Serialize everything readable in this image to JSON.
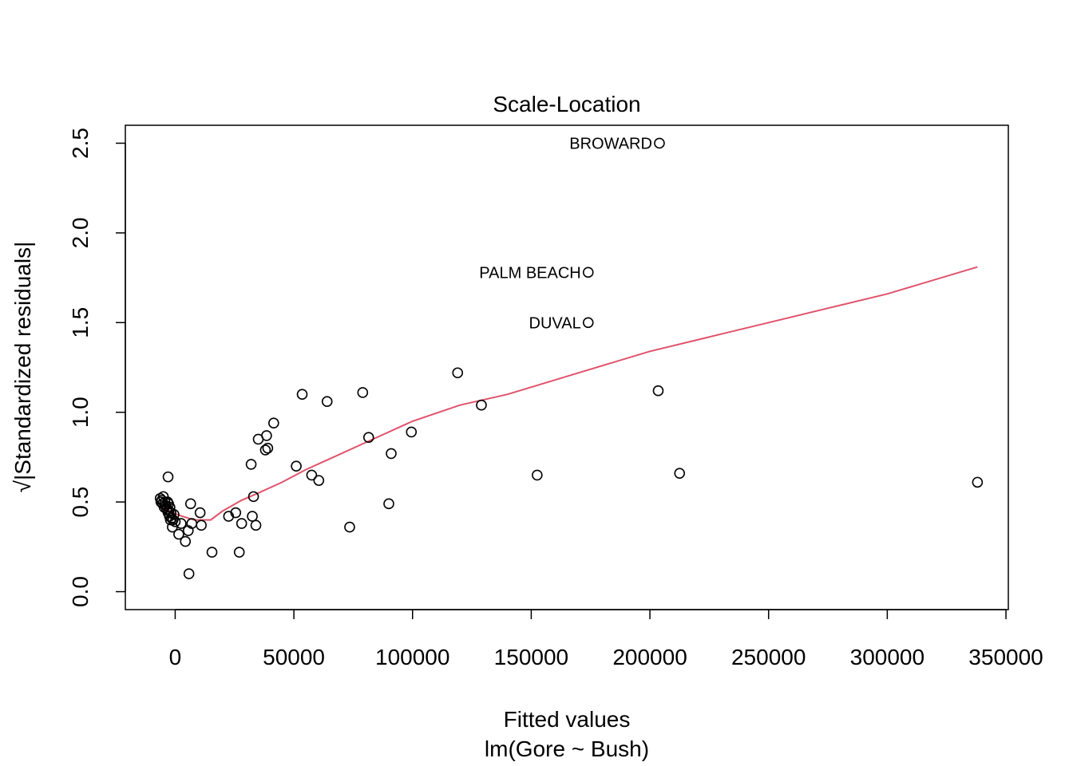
{
  "chart_data": {
    "type": "scatter",
    "title": "Scale-Location",
    "xlabel": "Fitted values",
    "xlabel_sub": "lm(Gore ~ Bush)",
    "ylabel": "√|Standardized residuals|",
    "xlim": [
      -21000,
      351000
    ],
    "ylim": [
      -0.1,
      2.6
    ],
    "xticks": [
      0,
      50000,
      100000,
      150000,
      200000,
      250000,
      300000,
      350000
    ],
    "xtick_labels": [
      "0",
      "50000",
      "100000",
      "150000",
      "200000",
      "250000",
      "300000",
      "350000"
    ],
    "yticks": [
      0.0,
      0.5,
      1.0,
      1.5,
      2.0,
      2.5
    ],
    "ytick_labels": [
      "0.0",
      "0.5",
      "1.0",
      "1.5",
      "2.0",
      "2.5"
    ],
    "smooth_color": "#DF536B",
    "points": [
      [
        -6300,
        0.52
      ],
      [
        -6000,
        0.5
      ],
      [
        -5600,
        0.51
      ],
      [
        -5300,
        0.49
      ],
      [
        -5000,
        0.53
      ],
      [
        -4600,
        0.47
      ],
      [
        -4300,
        0.5
      ],
      [
        -4000,
        0.48
      ],
      [
        -3600,
        0.46
      ],
      [
        -3200,
        0.5
      ],
      [
        -3000,
        0.44
      ],
      [
        -2800,
        0.49
      ],
      [
        -2600,
        0.45
      ],
      [
        -2400,
        0.42
      ],
      [
        -2200,
        0.47
      ],
      [
        -2000,
        0.4
      ],
      [
        -1800,
        0.44
      ],
      [
        -1500,
        0.41
      ],
      [
        -1200,
        0.36
      ],
      [
        -900,
        0.4
      ],
      [
        -3000,
        0.64
      ],
      [
        -500,
        0.43
      ],
      [
        0,
        0.39
      ],
      [
        1500,
        0.32
      ],
      [
        2500,
        0.38
      ],
      [
        4300,
        0.28
      ],
      [
        5500,
        0.34
      ],
      [
        5800,
        0.1
      ],
      [
        6500,
        0.49
      ],
      [
        7000,
        0.38
      ],
      [
        10500,
        0.44
      ],
      [
        11000,
        0.37
      ],
      [
        15500,
        0.22
      ],
      [
        22500,
        0.42
      ],
      [
        25500,
        0.44
      ],
      [
        27000,
        0.22
      ],
      [
        28000,
        0.38
      ],
      [
        32000,
        0.71
      ],
      [
        32500,
        0.42
      ],
      [
        33000,
        0.53
      ],
      [
        34000,
        0.37
      ],
      [
        35000,
        0.85
      ],
      [
        38000,
        0.79
      ],
      [
        38500,
        0.87
      ],
      [
        39000,
        0.8
      ],
      [
        41500,
        0.94
      ],
      [
        51000,
        0.7
      ],
      [
        53500,
        1.1
      ],
      [
        57500,
        0.65
      ],
      [
        60500,
        0.62
      ],
      [
        64000,
        1.06
      ],
      [
        73500,
        0.36
      ],
      [
        79000,
        1.11
      ],
      [
        81500,
        0.86
      ],
      [
        90000,
        0.49
      ],
      [
        91000,
        0.77
      ],
      [
        99500,
        0.89
      ],
      [
        119000,
        1.22
      ],
      [
        129000,
        1.04
      ],
      [
        152500,
        0.65
      ],
      [
        174000,
        1.5
      ],
      [
        174000,
        1.78
      ],
      [
        203500,
        1.12
      ],
      [
        204000,
        2.5
      ],
      [
        212500,
        0.66
      ],
      [
        338000,
        0.61
      ]
    ],
    "point_labels": [
      {
        "text": "BROWARD",
        "x": 204000,
        "y": 2.5
      },
      {
        "text": "PALM BEACH",
        "x": 174000,
        "y": 1.78
      },
      {
        "text": "DUVAL",
        "x": 174000,
        "y": 1.5
      }
    ],
    "smooth_line": [
      [
        -6500,
        0.48
      ],
      [
        -3500,
        0.46
      ],
      [
        -1000,
        0.44
      ],
      [
        3000,
        0.42
      ],
      [
        8000,
        0.4
      ],
      [
        15000,
        0.4
      ],
      [
        20000,
        0.45
      ],
      [
        28000,
        0.51
      ],
      [
        35000,
        0.55
      ],
      [
        45000,
        0.61
      ],
      [
        55000,
        0.68
      ],
      [
        65000,
        0.74
      ],
      [
        80000,
        0.83
      ],
      [
        100000,
        0.95
      ],
      [
        120000,
        1.04
      ],
      [
        140000,
        1.1
      ],
      [
        170000,
        1.22
      ],
      [
        200000,
        1.34
      ],
      [
        250000,
        1.5
      ],
      [
        300000,
        1.66
      ],
      [
        338000,
        1.81
      ]
    ]
  }
}
